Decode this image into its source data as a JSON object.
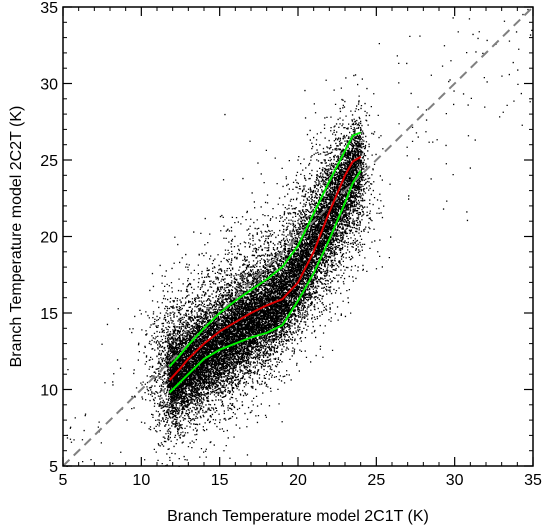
{
  "chart_data": {
    "type": "scatter",
    "title": "",
    "xlabel": "Branch Temperature model 2C1T (K)",
    "ylabel": "Branch Temperature model 2C2T (K)",
    "xlim": [
      5,
      35
    ],
    "ylim": [
      5,
      35
    ],
    "xticks": [
      5,
      10,
      15,
      20,
      25,
      30,
      35
    ],
    "yticks": [
      5,
      10,
      15,
      20,
      25,
      30,
      35
    ],
    "grid": false,
    "reference_line": {
      "style": "dashed",
      "color": "#808080",
      "from": [
        5,
        5
      ],
      "to": [
        35,
        35
      ]
    },
    "scatter_color": "#000000",
    "series": [
      {
        "color": "#00ee00",
        "x": [
          11.8,
          12.5,
          13.0,
          14.0,
          15.0,
          16.0,
          17.0,
          18.0,
          19.0,
          20.0,
          21.0,
          22.0,
          23.0,
          23.5,
          24.0
        ],
        "y": [
          11.5,
          12.3,
          12.9,
          14.0,
          15.0,
          15.8,
          16.5,
          17.2,
          18.0,
          19.4,
          21.5,
          23.6,
          25.6,
          26.6,
          26.8
        ]
      },
      {
        "color": "#dd0000",
        "x": [
          11.8,
          12.5,
          13.0,
          14.0,
          15.0,
          16.0,
          17.0,
          18.0,
          19.0,
          20.0,
          21.0,
          22.0,
          23.0,
          23.5,
          24.0
        ],
        "y": [
          10.6,
          11.4,
          12.0,
          13.0,
          13.8,
          14.4,
          15.0,
          15.5,
          15.9,
          17.0,
          19.0,
          21.6,
          24.0,
          24.9,
          25.2
        ]
      },
      {
        "color": "#00ee00",
        "x": [
          11.8,
          12.5,
          13.0,
          14.0,
          15.0,
          16.0,
          17.0,
          18.0,
          19.0,
          20.0,
          21.0,
          22.0,
          23.0,
          23.5,
          24.0
        ],
        "y": [
          9.8,
          10.5,
          11.0,
          12.0,
          12.6,
          13.0,
          13.4,
          13.7,
          14.2,
          15.8,
          17.6,
          19.8,
          22.2,
          23.5,
          24.3
        ]
      }
    ]
  }
}
